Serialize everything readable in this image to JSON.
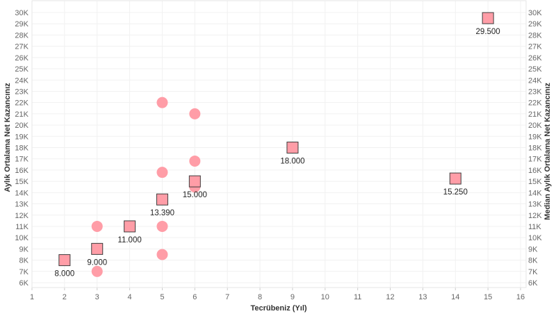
{
  "chart_data": {
    "type": "scatter",
    "xlabel": "Tecrübeniz (Yıl)",
    "ylabel_left": "Aylık Ortalama Net Kazancınız",
    "ylabel_right": "Median Aylık Ortalama Net Kazancınız",
    "x_ticks": [
      "1",
      "2",
      "3",
      "4",
      "5",
      "6",
      "7",
      "8",
      "9",
      "10",
      "11",
      "12",
      "13",
      "14",
      "15",
      "16"
    ],
    "y_ticks": [
      "6K",
      "7K",
      "8K",
      "9K",
      "10K",
      "11K",
      "12K",
      "13K",
      "14K",
      "15K",
      "16K",
      "17K",
      "18K",
      "19K",
      "20K",
      "21K",
      "22K",
      "23K",
      "24K",
      "25K",
      "26K",
      "27K",
      "28K",
      "29K",
      "30K"
    ],
    "xlim": [
      1,
      16
    ],
    "ylim": [
      6000,
      30000
    ],
    "grid": true,
    "colors": {
      "marker_fill": "#ff9da7",
      "square_stroke": "#3d3d3d"
    },
    "series": [
      {
        "marker": "circle",
        "points": [
          {
            "x": 3,
            "y": 7000
          },
          {
            "x": 3,
            "y": 11000
          },
          {
            "x": 5,
            "y": 8500
          },
          {
            "x": 5,
            "y": 11000
          },
          {
            "x": 5,
            "y": 15800
          },
          {
            "x": 5,
            "y": 22000
          },
          {
            "x": 6,
            "y": 14500
          },
          {
            "x": 6,
            "y": 16800
          },
          {
            "x": 6,
            "y": 21000
          }
        ]
      },
      {
        "marker": "square",
        "points": [
          {
            "x": 2,
            "y": 8000,
            "label": "8.000"
          },
          {
            "x": 3,
            "y": 9000,
            "label": "9.000"
          },
          {
            "x": 4,
            "y": 11000,
            "label": "11.000"
          },
          {
            "x": 5,
            "y": 13390,
            "label": "13.390"
          },
          {
            "x": 6,
            "y": 15000,
            "label": "15.000"
          },
          {
            "x": 9,
            "y": 18000,
            "label": "18.000"
          },
          {
            "x": 14,
            "y": 15250,
            "label": "15.250"
          },
          {
            "x": 15,
            "y": 29500,
            "label": "29.500"
          }
        ]
      }
    ]
  }
}
